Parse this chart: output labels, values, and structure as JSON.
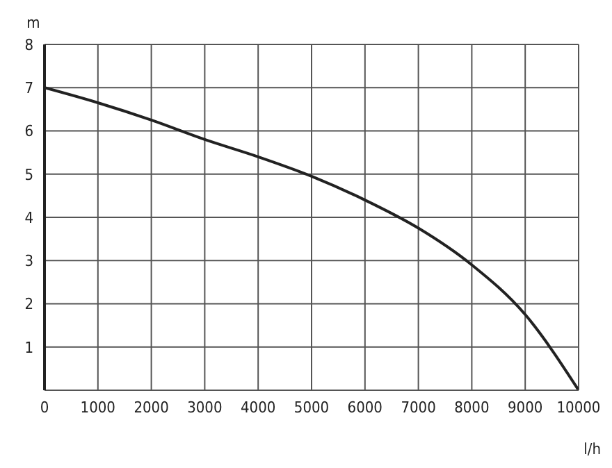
{
  "chart_data": {
    "type": "line",
    "ylabel": "m",
    "xlabel": "l/h",
    "x": [
      0,
      1000,
      2000,
      3000,
      4000,
      5000,
      6000,
      7000,
      8000,
      9000,
      10000
    ],
    "series": [
      {
        "color": "#222222",
        "values": [
          7.0,
          6.65,
          6.25,
          5.8,
          5.4,
          4.95,
          4.4,
          3.75,
          2.9,
          1.75,
          0
        ]
      }
    ],
    "xlim": [
      0,
      10000
    ],
    "xticks": [
      0,
      1000,
      2000,
      3000,
      4000,
      5000,
      6000,
      7000,
      8000,
      9000,
      10000
    ],
    "ylim": [
      0,
      8
    ],
    "yticks": [
      1,
      2,
      3,
      4,
      5,
      6,
      7,
      8
    ],
    "grid": true,
    "marker": "none",
    "line_style": "solid"
  }
}
